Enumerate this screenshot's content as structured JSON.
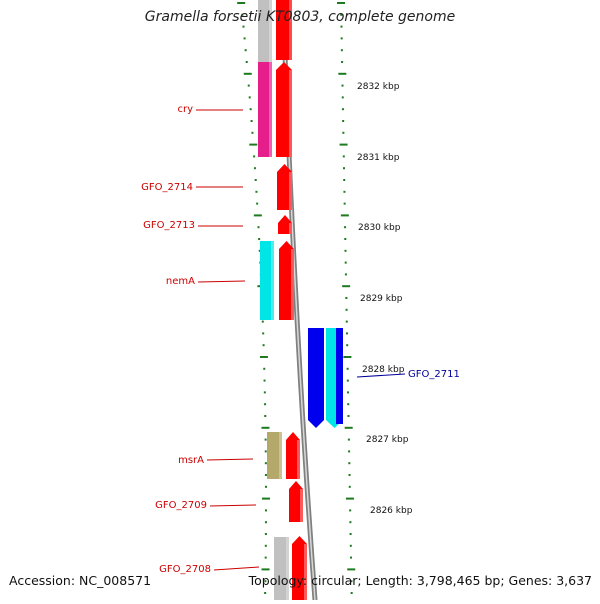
{
  "title": "Gramella forsetii KT0803, complete genome",
  "footer": {
    "accession": "Accession: NC_008571",
    "stats": "Topology: circular; Length: 3,798,465 bp; Genes: 3,637"
  },
  "colors": {
    "background": "#ffffff",
    "tick_marks": "#1f7a1f",
    "backbone": "#808080",
    "forward_gene": "#ff0000",
    "forward_label": "#cc0000",
    "reverse_label": "#000099",
    "rna_or_pseudogene": "#c0c0c0",
    "cry_cog": "#e61e8c",
    "nemA_cog": "#00e6e6",
    "msrA_cog": "#b4a86a",
    "GFO_2711_cog_a": "#0000ee",
    "GFO_2711_cog_b": "#00e6e6"
  },
  "scale_labels": [
    "2832 kbp",
    "2831 kbp",
    "2830 kbp",
    "2829 kbp",
    "2828 kbp",
    "2827 kbp",
    "2826 kbp"
  ],
  "gene_labels": [
    "cry",
    "GFO_2714",
    "GFO_2713",
    "nemA",
    "GFO_2711",
    "msrA",
    "GFO_2709",
    "GFO_2708"
  ]
}
